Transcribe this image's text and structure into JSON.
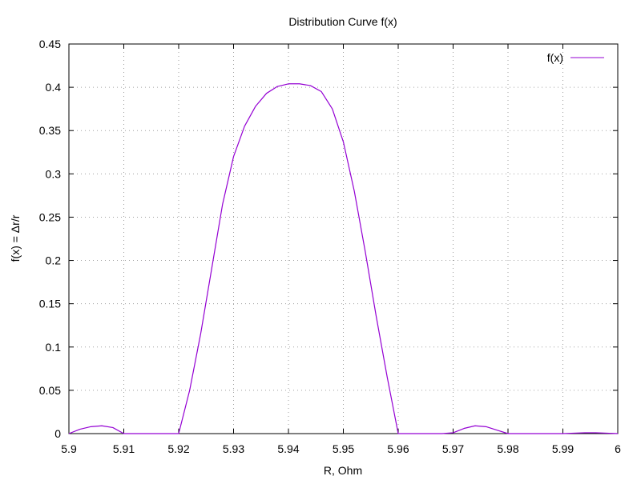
{
  "chart_data": {
    "type": "line",
    "title": "Distribution Curve f(x)",
    "xlabel": "R, Ohm",
    "ylabel": "f(x) = Δr/r",
    "xlim": [
      5.9,
      6.0
    ],
    "ylim": [
      0,
      0.45
    ],
    "x_ticks": [
      "5.9",
      "5.91",
      "5.92",
      "5.93",
      "5.94",
      "5.95",
      "5.96",
      "5.97",
      "5.98",
      "5.99",
      "6"
    ],
    "y_ticks": [
      "0",
      "0.05",
      "0.1",
      "0.15",
      "0.2",
      "0.25",
      "0.3",
      "0.35",
      "0.4",
      "0.45"
    ],
    "grid": true,
    "legend_position": "top-right",
    "series": [
      {
        "name": "f(x)",
        "color": "#9400d3",
        "x": [
          5.9,
          5.902,
          5.904,
          5.906,
          5.908,
          5.91,
          5.912,
          5.914,
          5.916,
          5.918,
          5.92,
          5.922,
          5.924,
          5.926,
          5.928,
          5.93,
          5.932,
          5.934,
          5.936,
          5.938,
          5.94,
          5.942,
          5.944,
          5.946,
          5.948,
          5.95,
          5.952,
          5.954,
          5.956,
          5.958,
          5.96,
          5.962,
          5.964,
          5.966,
          5.968,
          5.97,
          5.972,
          5.974,
          5.976,
          5.978,
          5.98,
          5.982,
          5.984,
          5.986,
          5.988,
          5.99,
          5.992,
          5.994,
          5.996,
          5.998,
          6.0
        ],
        "y": [
          0.0,
          0.005,
          0.008,
          0.009,
          0.007,
          0.0,
          0.0,
          0.0,
          0.0,
          0.0,
          0.0,
          0.05,
          0.115,
          0.19,
          0.265,
          0.32,
          0.355,
          0.378,
          0.393,
          0.401,
          0.404,
          0.404,
          0.402,
          0.395,
          0.375,
          0.337,
          0.28,
          0.21,
          0.135,
          0.065,
          0.0,
          0.0,
          0.0,
          0.0,
          0.0,
          0.001,
          0.006,
          0.009,
          0.008,
          0.004,
          0.0,
          0.0,
          0.0,
          0.0,
          0.0,
          0.0,
          0.0005,
          0.001,
          0.001,
          0.0005,
          0.0
        ]
      }
    ]
  }
}
